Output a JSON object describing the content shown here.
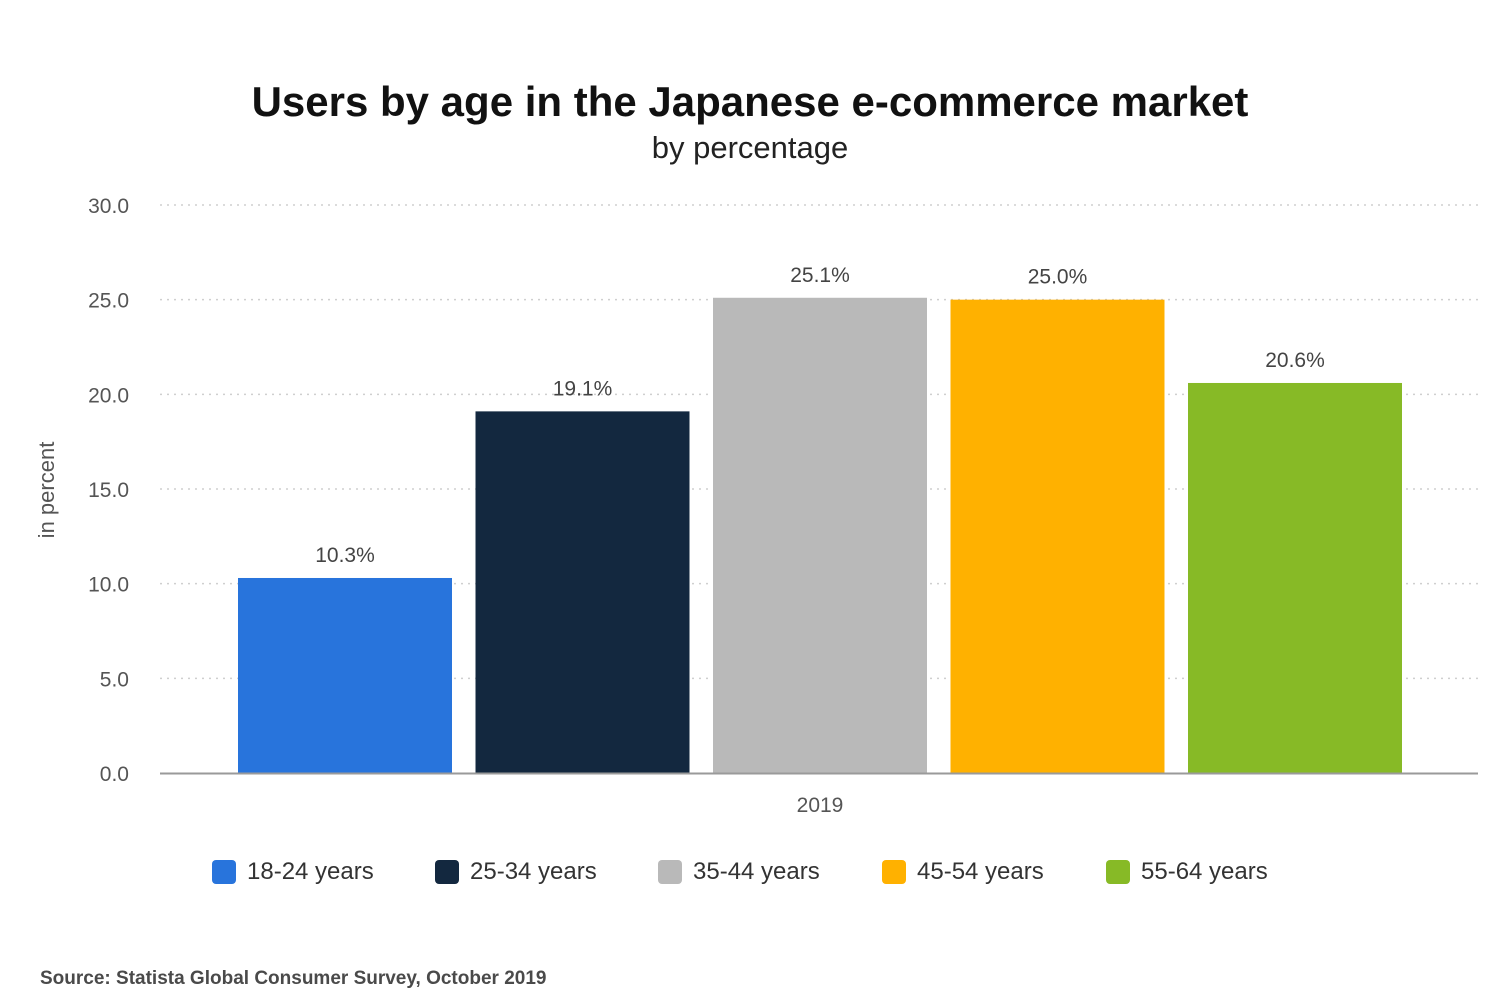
{
  "chart_data": {
    "type": "bar",
    "title": "Users by age in the Japanese e-commerce market",
    "subtitle": "by percentage",
    "ylabel": "in percent",
    "xlabel": "",
    "categories": [
      "2019"
    ],
    "ylim": [
      0,
      30
    ],
    "yticks": [
      "0.0",
      "5.0",
      "10.0",
      "15.0",
      "20.0",
      "25.0",
      "30.0"
    ],
    "grid": true,
    "legend_position": "bottom",
    "series": [
      {
        "name": "18-24 years",
        "values": [
          10.3
        ],
        "label": "10.3%",
        "color": "#2874dc"
      },
      {
        "name": "25-34 years",
        "values": [
          19.1
        ],
        "label": "19.1%",
        "color": "#13283f"
      },
      {
        "name": "35-44 years",
        "values": [
          25.1
        ],
        "label": "25.1%",
        "color": "#b9b9b9"
      },
      {
        "name": "45-54 years",
        "values": [
          25.0
        ],
        "label": "25.0%",
        "color": "#ffb100"
      },
      {
        "name": "55-64 years",
        "values": [
          20.6
        ],
        "label": "20.6%",
        "color": "#87ba26"
      }
    ]
  },
  "source": "Source: Statista Global Consumer Survey, October 2019"
}
